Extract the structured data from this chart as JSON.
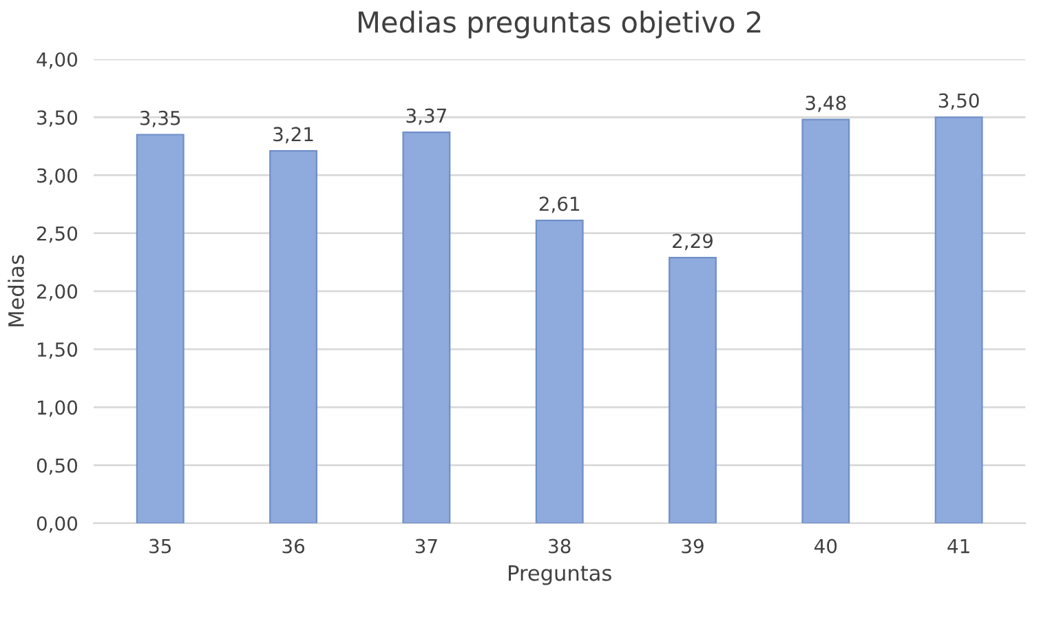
{
  "chart_data": {
    "type": "bar",
    "title": "Medias preguntas objetivo 2",
    "xlabel": "Preguntas",
    "ylabel": "Medias",
    "categories": [
      "35",
      "36",
      "37",
      "38",
      "39",
      "40",
      "41"
    ],
    "values": [
      3.35,
      3.21,
      3.37,
      2.61,
      2.29,
      3.48,
      3.5
    ],
    "value_labels": [
      "3,35",
      "3,21",
      "3,37",
      "2,61",
      "2,29",
      "3,48",
      "3,50"
    ],
    "color": "#8faadc",
    "ylim": [
      0,
      4
    ],
    "yticks": [
      {
        "value": 0,
        "label": "0,00"
      },
      {
        "value": 0.5,
        "label": "0,50"
      },
      {
        "value": 1,
        "label": "1,00"
      },
      {
        "value": 1.5,
        "label": "1,50"
      },
      {
        "value": 2,
        "label": "2,00"
      },
      {
        "value": 2.5,
        "label": "2,50"
      },
      {
        "value": 3,
        "label": "3,00"
      },
      {
        "value": 3.5,
        "label": "3,50"
      },
      {
        "value": 4,
        "label": "4,00"
      }
    ],
    "grid": "y",
    "legend": false
  }
}
